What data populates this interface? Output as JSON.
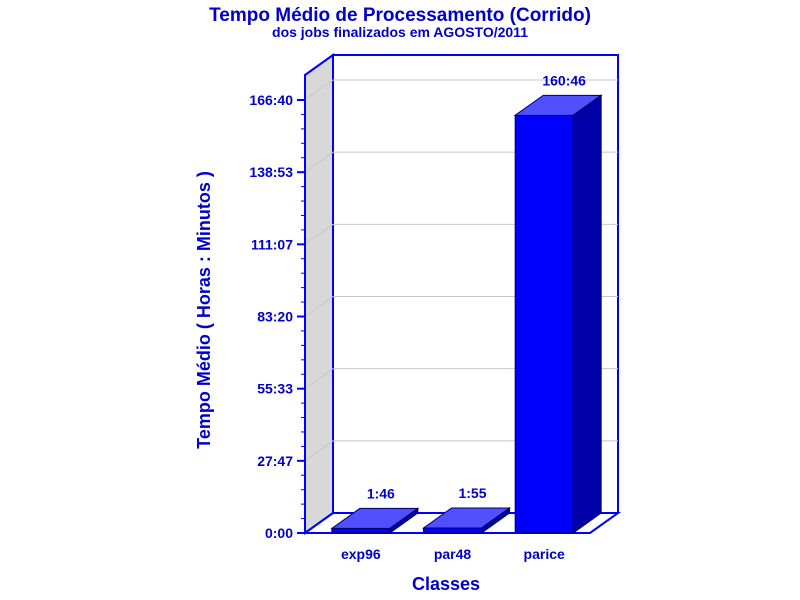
{
  "chart_data": {
    "type": "bar",
    "title": "Tempo Médio de Processamento (Corrido)",
    "subtitle": "dos jobs finalizados em AGOSTO/2011",
    "xlabel": "Classes",
    "ylabel": "Tempo Médio ( Horas : Minutos )",
    "categories": [
      "exp96",
      "par48",
      "parice"
    ],
    "values_minutes": [
      106,
      115,
      9646
    ],
    "data_labels": [
      "1:46",
      "1:55",
      "160:46"
    ],
    "yticks_minutes": [
      0,
      1667,
      3333,
      5000,
      6667,
      8333,
      10000
    ],
    "ytick_labels": [
      "0:00",
      "27:47",
      "55:33",
      "83:20",
      "111:07",
      "138:53",
      "166:40"
    ],
    "ylim": [
      0,
      10000
    ],
    "grid": true,
    "legend": "none",
    "colors": {
      "text": "#0000cc",
      "axis": "#0000ff",
      "bar_front": "#0000ff",
      "bar_top": "#5050ff",
      "bar_side": "#0000a8",
      "wall": "#d8d8d8",
      "grid": "#c8c8c8"
    }
  }
}
